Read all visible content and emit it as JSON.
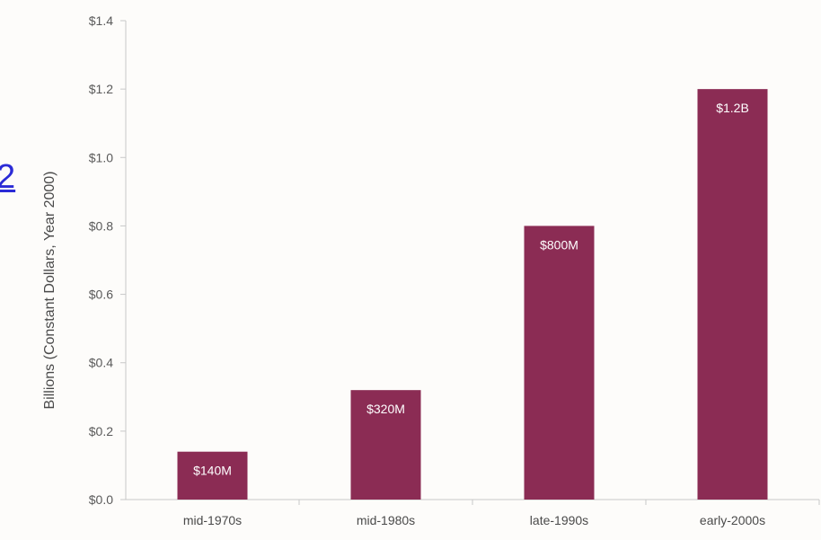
{
  "edge_fragment": "2",
  "chart_data": {
    "type": "bar",
    "categories": [
      "mid-1970s",
      "mid-1980s",
      "late-1990s",
      "early-2000s"
    ],
    "values": [
      0.14,
      0.32,
      0.8,
      1.2
    ],
    "data_labels": [
      "$140M",
      "$320M",
      "$800M",
      "$1.2B"
    ],
    "title": "",
    "xlabel": "",
    "ylabel": "Billions (Constant Dollars, Year 2000)",
    "ylim": [
      0,
      1.4
    ],
    "yticks": [
      0,
      0.2,
      0.4,
      0.6,
      0.8,
      1.0,
      1.2,
      1.4
    ],
    "ytick_labels": [
      "$0.0",
      "$0.2",
      "$0.4",
      "$0.6",
      "$0.8",
      "$1.0",
      "$1.2",
      "$1.4"
    ],
    "grid": false,
    "legend": "none",
    "bar_color": "#8b2c54",
    "axis_color": "#c8c8c8"
  }
}
